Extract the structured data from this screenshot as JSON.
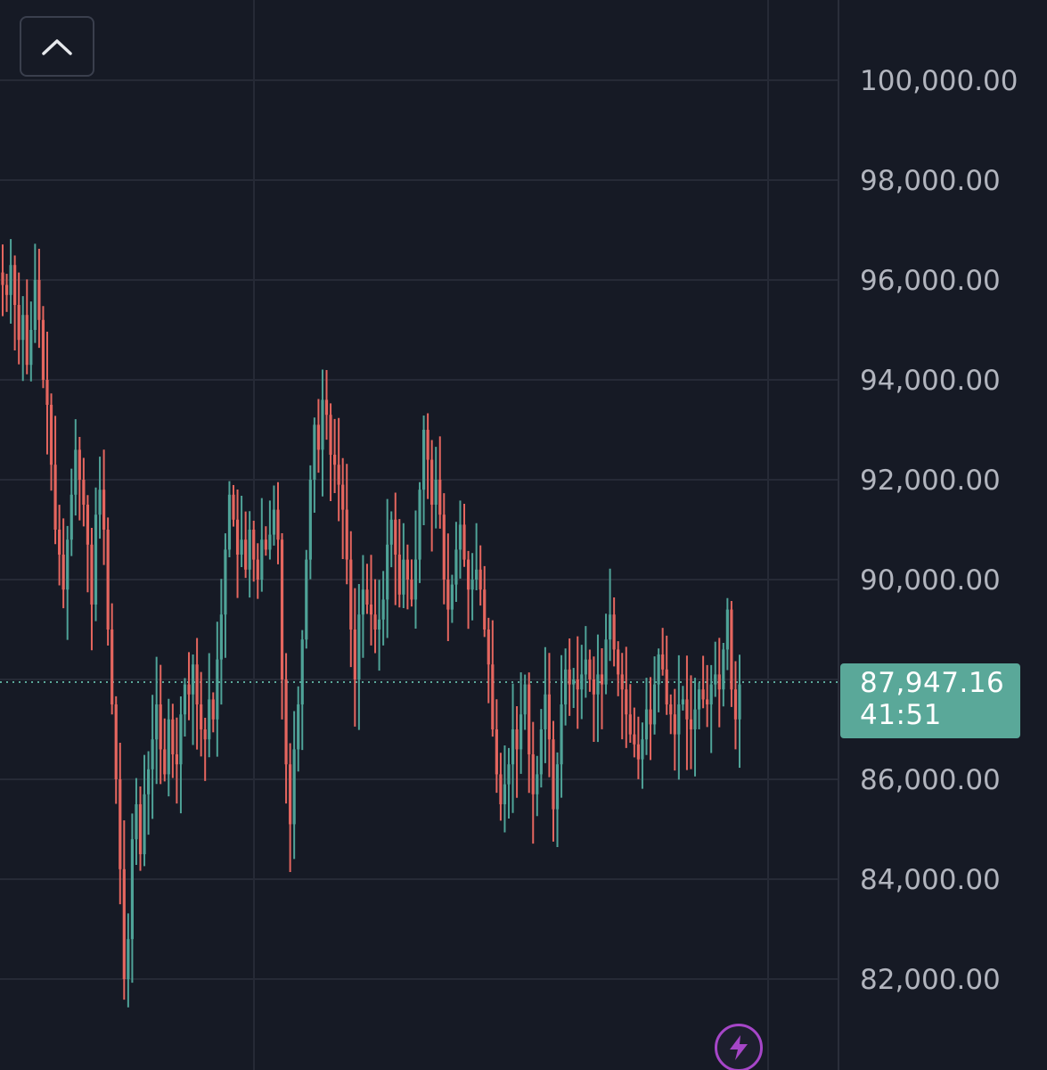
{
  "chart_data": {
    "type": "candlestick",
    "title": "",
    "xlabel": "",
    "ylabel": "",
    "ylim": [
      80250,
      101500
    ],
    "y_ticks": [
      "100,000.00",
      "98,000.00",
      "96,000.00",
      "94,000.00",
      "92,000.00",
      "90,000.00",
      "86,000.00",
      "84,000.00",
      "82,000.00"
    ],
    "y_tick_values": [
      100000,
      98000,
      96000,
      94000,
      92000,
      90000,
      86000,
      84000,
      82000
    ],
    "grid": true,
    "last_price": 87947.16,
    "last_price_label": "87,947.16",
    "countdown": "41:51",
    "colors": {
      "background": "#161a25",
      "up": "#4fa398",
      "down": "#e5665f",
      "grid": "#262a36",
      "axis_text": "#b2b5be",
      "price_tag": "#5aa899",
      "flash": "#a646c8"
    },
    "series_close_path": [
      95900,
      95700,
      96300,
      95500,
      94800,
      95300,
      94300,
      95000,
      96000,
      95200,
      94000,
      93500,
      92300,
      91000,
      90500,
      89800,
      90800,
      91700,
      92600,
      92000,
      91500,
      90700,
      89500,
      91300,
      91800,
      91000,
      89000,
      87500,
      86000,
      84200,
      82000,
      82800,
      84800,
      85500,
      84500,
      85700,
      86200,
      86800,
      87500,
      86600,
      86100,
      87200,
      86500,
      86300,
      87300,
      87900,
      87700,
      88300,
      87500,
      87000,
      86800,
      87600,
      87200,
      88400,
      89300,
      90600,
      91700,
      91200,
      90500,
      90800,
      90200,
      91000,
      90400,
      90000,
      90800,
      90600,
      90900,
      91400,
      90800,
      88000,
      86300,
      85100,
      86600,
      87500,
      88800,
      90400,
      92000,
      93100,
      92600,
      93600,
      93300,
      92500,
      92300,
      91900,
      91400,
      90400,
      89000,
      88000,
      89300,
      89800,
      89500,
      89300,
      89000,
      89200,
      89600,
      90700,
      91200,
      90500,
      89700,
      90400,
      90000,
      89600,
      90400,
      91800,
      93000,
      92400,
      91500,
      92000,
      91300,
      90000,
      89400,
      89900,
      90600,
      91100,
      90400,
      89800,
      90000,
      90200,
      89800,
      89000,
      88300,
      87000,
      86100,
      85500,
      85900,
      86300,
      87000,
      86600,
      87300,
      87900,
      86500,
      85700,
      86100,
      87000,
      87700,
      86800,
      85400,
      86300,
      87500,
      88200,
      87900,
      88000,
      87800,
      88100,
      88400,
      88000,
      87700,
      88100,
      87900,
      88800,
      89300,
      88600,
      88100,
      87800,
      87300,
      86900,
      86700,
      86400,
      86800,
      87400,
      87100,
      87900,
      88500,
      88200,
      87500,
      87300,
      86900,
      87500,
      87600,
      87200,
      87000,
      87400,
      87800,
      87600,
      87500,
      87900,
      88100,
      87800,
      88600,
      89400,
      87800,
      87200,
      87900
    ]
  },
  "ui": {
    "collapse_icon": "chevron-up-icon",
    "flash_icon": "lightning-bolt-icon"
  }
}
